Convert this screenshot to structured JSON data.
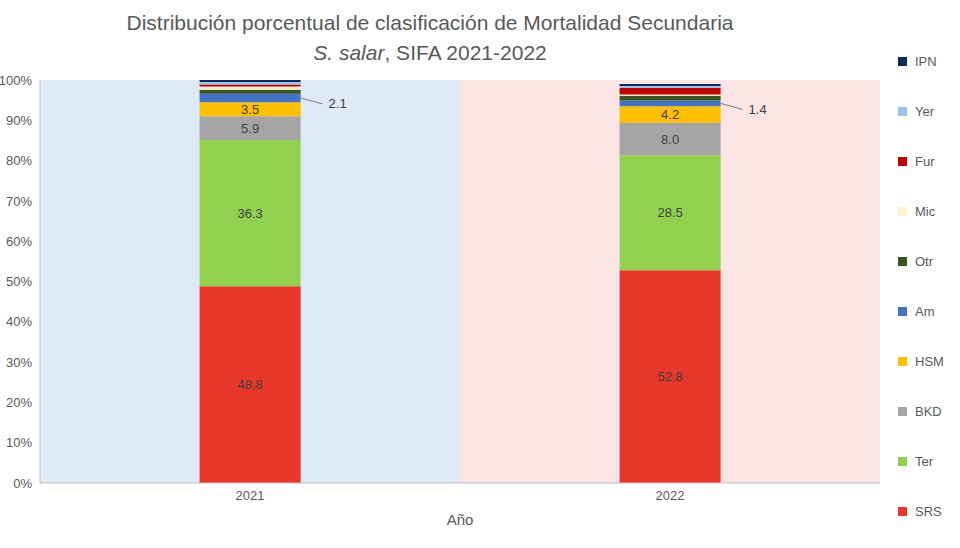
{
  "chart_data": {
    "type": "bar",
    "stacked": true,
    "title": "Distribución porcentual de clasificación de Mortalidad Secundaria",
    "subtitle": "S. salar, SIFA 2021-2022",
    "x_label": "Año",
    "categories": [
      "2021",
      "2022"
    ],
    "ylim": [
      0,
      100
    ],
    "yticks": [
      {
        "value": 0,
        "label": "0%"
      },
      {
        "value": 10,
        "label": "10%"
      },
      {
        "value": 20,
        "label": "20%"
      },
      {
        "value": 30,
        "label": "30%"
      },
      {
        "value": 40,
        "label": "40%"
      },
      {
        "value": 50,
        "label": "50%"
      },
      {
        "value": 60,
        "label": "60%"
      },
      {
        "value": 70,
        "label": "70%"
      },
      {
        "value": 80,
        "label": "80%"
      },
      {
        "value": 90,
        "label": "90%"
      },
      {
        "value": 100,
        "label": "100%"
      }
    ],
    "grid": false,
    "legend": "right",
    "series": [
      {
        "name": "SRS",
        "color": "#e8362a",
        "values": [
          48.8,
          52.8
        ],
        "data_labels": true
      },
      {
        "name": "Ter",
        "color": "#92d050",
        "values": [
          36.3,
          28.5
        ],
        "data_labels": true
      },
      {
        "name": "BKD",
        "color": "#a5a5a5",
        "values": [
          5.9,
          8.0
        ],
        "value_labels": [
          "5.9",
          "8.0"
        ],
        "data_labels": true
      },
      {
        "name": "HSM",
        "color": "#ffc000",
        "values": [
          3.5,
          4.2
        ],
        "data_labels": true
      },
      {
        "name": "Am",
        "color": "#4472c4",
        "values": [
          2.1,
          1.4
        ],
        "data_labels": true
      },
      {
        "name": "Otr",
        "color": "#375623",
        "values": [
          1.0,
          1.2
        ],
        "data_labels": false
      },
      {
        "name": "Mic",
        "color": "#fff2cc",
        "values": [
          0.8,
          0.3
        ],
        "data_labels": false
      },
      {
        "name": "Fur",
        "color": "#c00000",
        "values": [
          0.5,
          1.6
        ],
        "data_labels": false
      },
      {
        "name": "Yer",
        "color": "#9dc3e6",
        "values": [
          0.6,
          0.5
        ],
        "data_labels": false
      },
      {
        "name": "IPN",
        "color": "#0b2a5b",
        "values": [
          0.5,
          0.5
        ],
        "data_labels": false
      }
    ]
  }
}
